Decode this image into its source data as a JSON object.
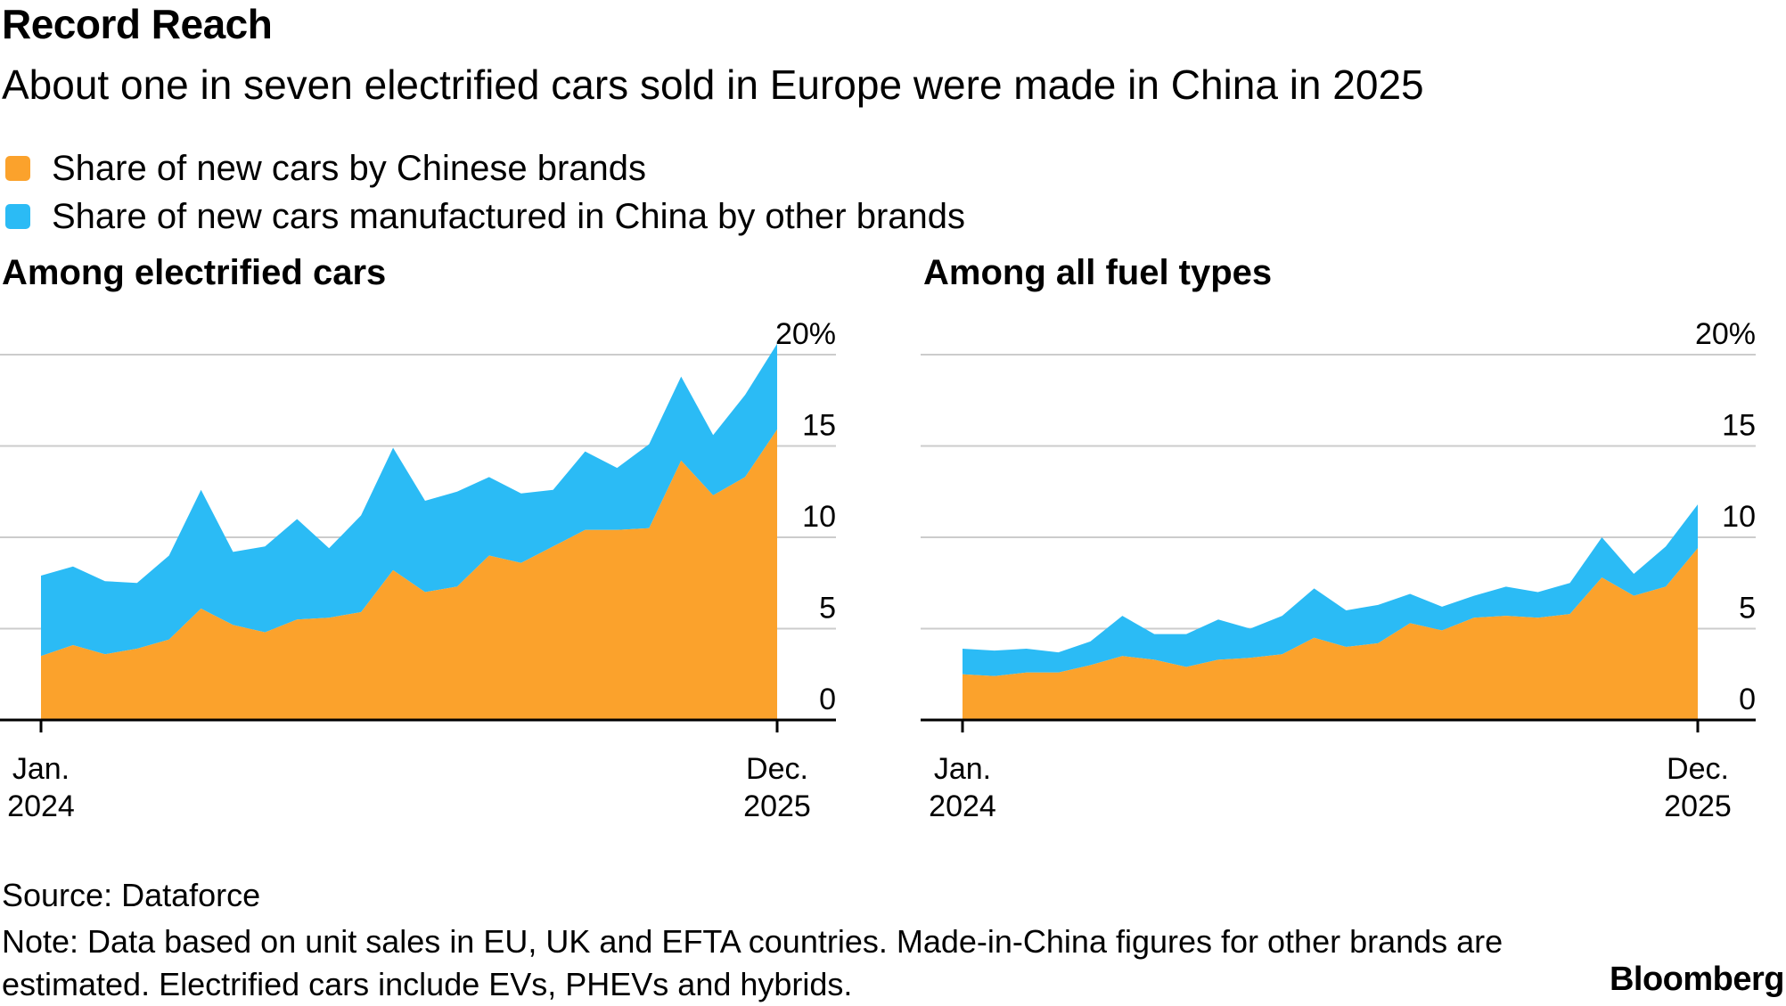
{
  "title": "Record Reach",
  "subtitle": "About one in seven electrified cars sold in Europe were made in China in 2025",
  "legend": [
    {
      "label": "Share of new cars by Chinese brands",
      "color": "#FBA22C"
    },
    {
      "label": "Share of new cars manufactured in China by other brands",
      "color": "#2BBBF5"
    }
  ],
  "source": "Source: Dataforce",
  "note": "Note: Data based on unit sales in EU, UK and EFTA countries. Made-in-China figures for other brands are estimated. Electrified cars include EVs, PHEVs and hybrids.",
  "brand": "Bloomberg",
  "chart_data": [
    {
      "type": "area",
      "stacked": true,
      "title": "Among electrified cars",
      "x": [
        "Jan. 2024",
        "Feb. 2024",
        "Mar. 2024",
        "Apr. 2024",
        "May 2024",
        "Jun. 2024",
        "Jul. 2024",
        "Aug. 2024",
        "Sep. 2024",
        "Oct. 2024",
        "Nov. 2024",
        "Dec. 2024",
        "Jan. 2025",
        "Feb. 2025",
        "Mar. 2025",
        "Apr. 2025",
        "May 2025",
        "Jun. 2025",
        "Jul. 2025",
        "Aug. 2025",
        "Sep. 2025",
        "Oct. 2025",
        "Nov. 2025",
        "Dec. 2025"
      ],
      "series": [
        {
          "name": "Share of new cars by Chinese brands",
          "color": "#FBA22C",
          "values": [
            3.5,
            4.1,
            3.6,
            3.9,
            4.4,
            6.1,
            5.2,
            4.8,
            5.5,
            5.6,
            5.9,
            8.2,
            7.0,
            7.3,
            9.0,
            8.6,
            9.5,
            10.4,
            10.4,
            10.5,
            14.2,
            12.3,
            13.3,
            15.9
          ]
        },
        {
          "name": "Share of new cars manufactured in China by other brands",
          "color": "#2BBBF5",
          "values": [
            4.4,
            4.3,
            4.0,
            3.6,
            4.6,
            6.5,
            4.0,
            4.7,
            5.5,
            3.8,
            5.3,
            6.7,
            5.0,
            5.2,
            4.3,
            3.8,
            3.1,
            4.3,
            3.4,
            4.6,
            4.6,
            3.3,
            4.5,
            4.7
          ]
        }
      ],
      "y_ticks": [
        "0",
        "5",
        "10",
        "15",
        "20%"
      ],
      "ylim": [
        0,
        20
      ],
      "x_labels": [
        {
          "line1": "Jan.",
          "line2": "2024"
        },
        {
          "line1": "Dec.",
          "line2": "2025"
        }
      ]
    },
    {
      "type": "area",
      "stacked": true,
      "title": "Among all fuel types",
      "x": [
        "Jan. 2024",
        "Feb. 2024",
        "Mar. 2024",
        "Apr. 2024",
        "May 2024",
        "Jun. 2024",
        "Jul. 2024",
        "Aug. 2024",
        "Sep. 2024",
        "Oct. 2024",
        "Nov. 2024",
        "Dec. 2024",
        "Jan. 2025",
        "Feb. 2025",
        "Mar. 2025",
        "Apr. 2025",
        "May 2025",
        "Jun. 2025",
        "Jul. 2025",
        "Aug. 2025",
        "Sep. 2025",
        "Oct. 2025",
        "Nov. 2025",
        "Dec. 2025"
      ],
      "series": [
        {
          "name": "Share of new cars by Chinese brands",
          "color": "#FBA22C",
          "values": [
            2.5,
            2.4,
            2.6,
            2.6,
            3.0,
            3.5,
            3.3,
            2.9,
            3.3,
            3.4,
            3.6,
            4.5,
            4.0,
            4.2,
            5.3,
            4.9,
            5.6,
            5.7,
            5.6,
            5.8,
            7.8,
            6.8,
            7.3,
            9.4
          ]
        },
        {
          "name": "Share of new cars manufactured in China by other brands",
          "color": "#2BBBF5",
          "values": [
            1.4,
            1.4,
            1.3,
            1.1,
            1.3,
            2.2,
            1.4,
            1.8,
            2.2,
            1.6,
            2.1,
            2.7,
            2.0,
            2.1,
            1.6,
            1.3,
            1.2,
            1.6,
            1.4,
            1.7,
            2.2,
            1.2,
            2.2,
            2.4
          ]
        }
      ],
      "y_ticks": [
        "0",
        "5",
        "10",
        "15",
        "20%"
      ],
      "ylim": [
        0,
        20
      ],
      "x_labels": [
        {
          "line1": "Jan.",
          "line2": "2024"
        },
        {
          "line1": "Dec.",
          "line2": "2025"
        }
      ]
    }
  ]
}
